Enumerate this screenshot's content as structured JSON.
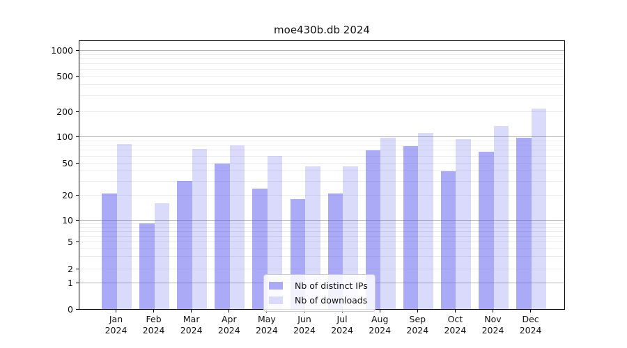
{
  "chart_data": {
    "type": "bar",
    "title": "moe430b.db 2024",
    "categories": [
      "Jan",
      "Feb",
      "Mar",
      "Apr",
      "May",
      "Jun",
      "Jul",
      "Aug",
      "Sep",
      "Oct",
      "Nov",
      "Dec"
    ],
    "category_year": "2024",
    "series": [
      {
        "name": "Nb of distinct IPs",
        "bar_color": "rgba(85,85,238,0.5)",
        "legend_color": "#aaaaf6",
        "values": [
          21,
          9,
          30,
          50,
          24,
          18,
          21,
          70,
          78,
          40,
          68,
          97
        ]
      },
      {
        "name": "Nb of downloads",
        "bar_color": "rgba(85,85,238,0.215)",
        "legend_color": "#dadafa",
        "values": [
          82,
          16,
          72,
          80,
          60,
          46,
          46,
          97,
          110,
          93,
          133,
          215
        ]
      }
    ],
    "y_ticks": [
      0,
      1,
      2,
      5,
      10,
      20,
      50,
      100,
      200,
      500,
      1000
    ],
    "y_scale": "symlog",
    "ylim": [
      0,
      1000
    ],
    "grid": true,
    "legend_position": "lower center",
    "colors": {
      "axis": "#000000",
      "grid_major": "#b3b3b3",
      "grid_minor": "#ebebeb",
      "legend_border": "#cccccc"
    }
  }
}
